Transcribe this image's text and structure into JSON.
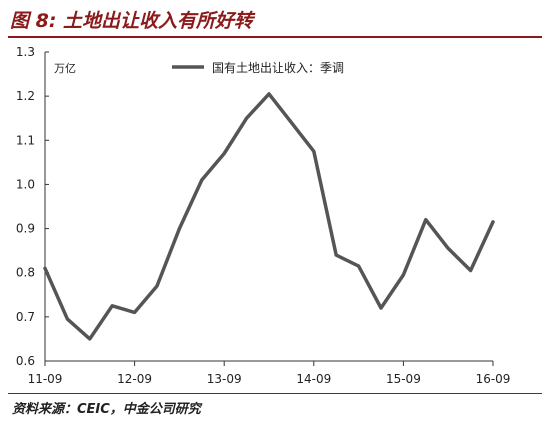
{
  "figure": {
    "title": "图 8: 土地出让收入有所好转",
    "source": "资料来源：CEIC，中金公司研究"
  },
  "chart_data": {
    "type": "line",
    "unit_label": "万亿",
    "ylim": [
      0.6,
      1.3
    ],
    "y_ticks": [
      "0.6",
      "0.7",
      "0.8",
      "0.9",
      "1.0",
      "1.1",
      "1.2",
      "1.3"
    ],
    "x_tick_labels": [
      "11-09",
      "12-09",
      "13-09",
      "14-09",
      "15-09",
      "16-09"
    ],
    "grid": false,
    "legend_position": "top-center",
    "series": [
      {
        "name": "国有土地出让收入：季调",
        "color": "#555555",
        "x": [
          "2011-09",
          "2011-12",
          "2012-03",
          "2012-06",
          "2012-09",
          "2012-12",
          "2013-03",
          "2013-06",
          "2013-09",
          "2013-12",
          "2014-03",
          "2014-06",
          "2014-09",
          "2014-12",
          "2015-03",
          "2015-06",
          "2015-09",
          "2015-12",
          "2016-03",
          "2016-06",
          "2016-09"
        ],
        "values": [
          0.81,
          0.695,
          0.65,
          0.725,
          0.71,
          0.77,
          0.9,
          1.01,
          1.07,
          1.15,
          1.205,
          1.14,
          1.075,
          0.84,
          0.815,
          0.72,
          0.795,
          0.92,
          0.855,
          0.805,
          0.915
        ]
      }
    ]
  }
}
